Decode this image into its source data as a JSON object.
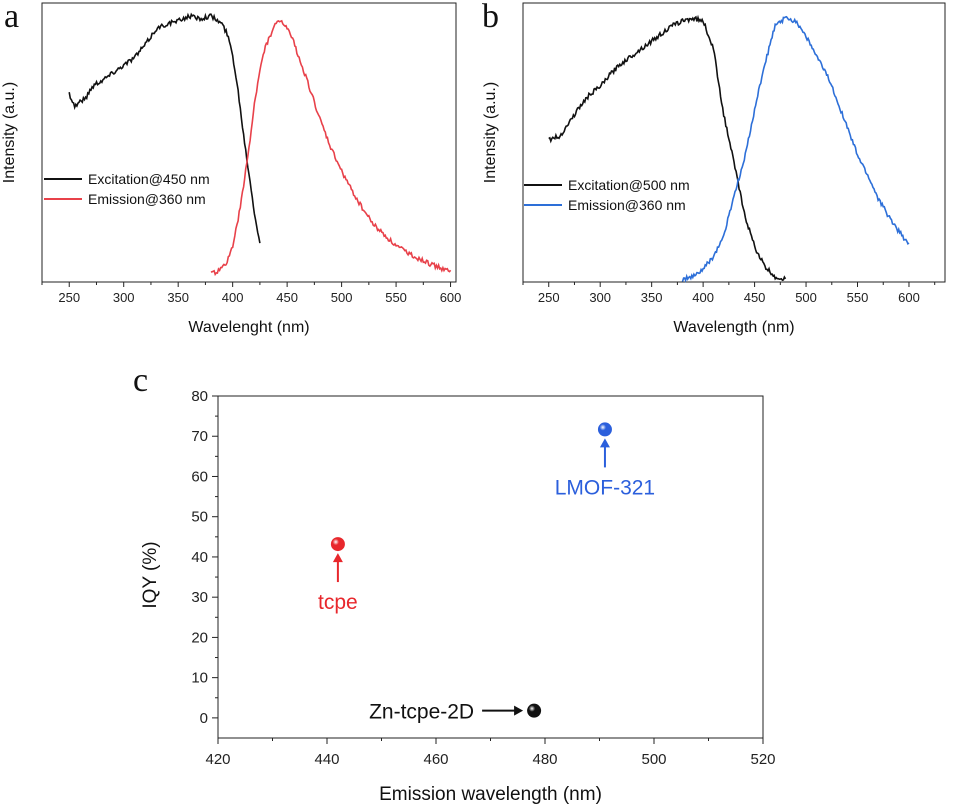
{
  "panels": {
    "a": "a",
    "b": "b",
    "c": "c"
  },
  "chart_data": [
    {
      "panel": "a",
      "type": "line",
      "xlabel": "Wavelenght (nm)",
      "ylabel": "Intensity (a.u.)",
      "xlim": [
        225,
        605
      ],
      "ylim": [
        0,
        1.08
      ],
      "xticks": [
        "250",
        "300",
        "350",
        "400",
        "450",
        "500",
        "550",
        "600"
      ],
      "legend_position": "left-middle",
      "series": [
        {
          "name": "Excitation@450 nm",
          "color": "#111111",
          "x": [
            250,
            255,
            260,
            265,
            270,
            275,
            280,
            290,
            300,
            310,
            320,
            330,
            340,
            350,
            360,
            370,
            380,
            390,
            395,
            400,
            405,
            410,
            415,
            420,
            425
          ],
          "y": [
            0.73,
            0.68,
            0.7,
            0.71,
            0.75,
            0.77,
            0.78,
            0.81,
            0.84,
            0.87,
            0.92,
            0.98,
            1.0,
            1.01,
            1.03,
            1.02,
            1.03,
            1.0,
            0.96,
            0.88,
            0.74,
            0.57,
            0.42,
            0.27,
            0.15
          ]
        },
        {
          "name": "Emission@360 nm",
          "color": "#e8414a",
          "x": [
            380,
            390,
            395,
            400,
            405,
            410,
            415,
            420,
            425,
            430,
            435,
            440,
            445,
            450,
            455,
            460,
            470,
            480,
            490,
            500,
            510,
            520,
            530,
            550,
            575,
            600
          ],
          "y": [
            0.03,
            0.05,
            0.08,
            0.14,
            0.24,
            0.37,
            0.52,
            0.69,
            0.82,
            0.91,
            0.96,
            1.0,
            1.01,
            0.98,
            0.94,
            0.88,
            0.76,
            0.63,
            0.52,
            0.43,
            0.35,
            0.28,
            0.22,
            0.14,
            0.08,
            0.04
          ]
        }
      ]
    },
    {
      "panel": "b",
      "type": "line",
      "xlabel": "Wavelength (nm)",
      "ylabel": "Intensity (a.u.)",
      "xlim": [
        225,
        635
      ],
      "ylim": [
        0,
        1.1
      ],
      "xticks": [
        "250",
        "300",
        "350",
        "400",
        "450",
        "500",
        "550",
        "600"
      ],
      "legend_position": "left-middle",
      "series": [
        {
          "name": "Excitation@500 nm",
          "color": "#111111",
          "x": [
            250,
            255,
            260,
            265,
            270,
            280,
            290,
            300,
            310,
            320,
            330,
            340,
            350,
            360,
            370,
            380,
            390,
            400,
            410,
            420,
            430,
            440,
            450,
            460,
            470,
            480
          ],
          "y": [
            0.56,
            0.57,
            0.57,
            0.6,
            0.63,
            0.69,
            0.74,
            0.77,
            0.82,
            0.86,
            0.89,
            0.92,
            0.95,
            0.98,
            1.01,
            1.03,
            1.04,
            1.03,
            0.92,
            0.66,
            0.47,
            0.27,
            0.14,
            0.06,
            0.02,
            0.01
          ]
        },
        {
          "name": "Emission@360 nm",
          "color": "#2d6fd8",
          "x": [
            380,
            390,
            400,
            410,
            420,
            430,
            440,
            450,
            460,
            470,
            480,
            490,
            500,
            510,
            520,
            530,
            540,
            550,
            560,
            570,
            580,
            590,
            600
          ],
          "y": [
            0.01,
            0.02,
            0.05,
            0.1,
            0.18,
            0.34,
            0.48,
            0.68,
            0.86,
            1.01,
            1.04,
            1.03,
            0.97,
            0.89,
            0.82,
            0.72,
            0.61,
            0.5,
            0.42,
            0.33,
            0.26,
            0.2,
            0.15
          ]
        }
      ]
    },
    {
      "panel": "c",
      "type": "scatter",
      "xlabel": "Emission wavelength (nm)",
      "ylabel": "IQY (%)",
      "xlim": [
        420,
        520
      ],
      "ylim": [
        -5,
        80
      ],
      "xticks": [
        "420",
        "440",
        "460",
        "480",
        "500",
        "520"
      ],
      "yticks": [
        "0",
        "10",
        "20",
        "30",
        "40",
        "50",
        "60",
        "70",
        "80"
      ],
      "points": [
        {
          "label": "tcpe",
          "x": 442,
          "y": 43.2,
          "color": "#e8272c",
          "label_position": "below"
        },
        {
          "label": "LMOF-321",
          "x": 491,
          "y": 71.7,
          "color": "#2b5fdc",
          "label_position": "below"
        },
        {
          "label": "Zn-tcpe-2D",
          "x": 478,
          "y": 1.8,
          "color": "#111111",
          "label_position": "left"
        }
      ]
    }
  ]
}
